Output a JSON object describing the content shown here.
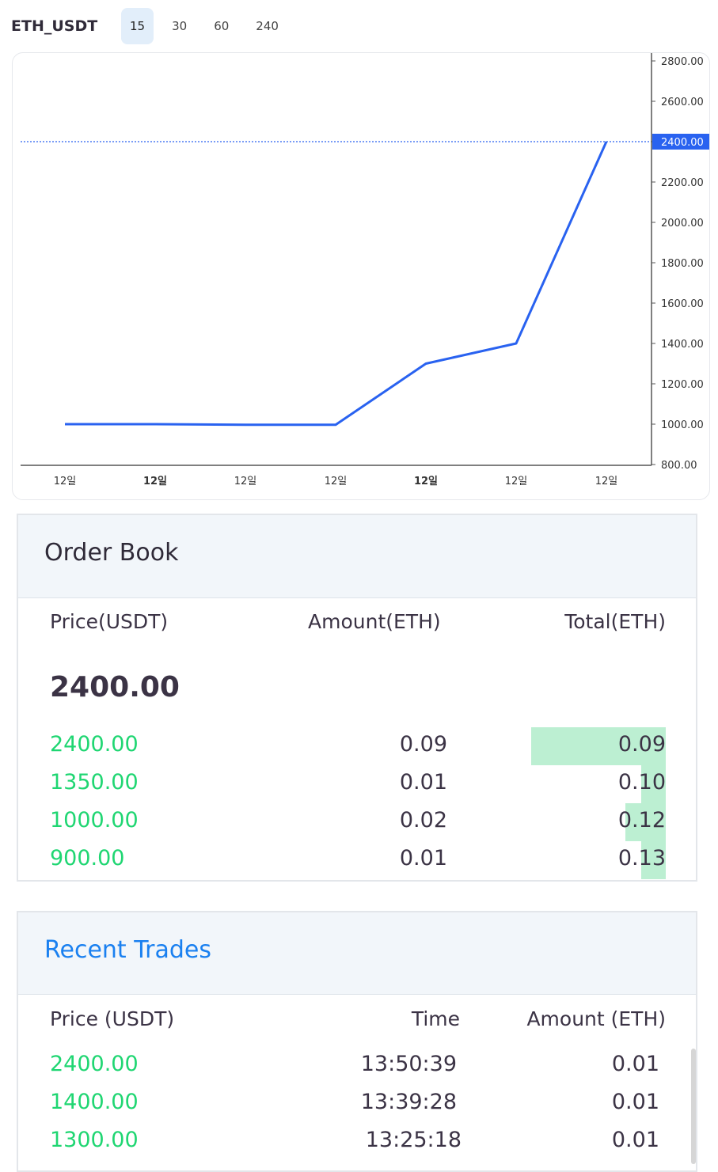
{
  "header": {
    "symbol": "ETH_USDT",
    "intervals": [
      {
        "label": "15",
        "active": true
      },
      {
        "label": "30",
        "active": false
      },
      {
        "label": "60",
        "active": false
      },
      {
        "label": "240",
        "active": false
      }
    ]
  },
  "chart_data": {
    "type": "line",
    "x": [
      "12일",
      "12일",
      "12일",
      "12일",
      "12일",
      "12일",
      "12일"
    ],
    "x_bold": [
      false,
      true,
      false,
      false,
      true,
      false,
      false
    ],
    "values": [
      1000,
      1000,
      997,
      997,
      1300,
      1400,
      2400
    ],
    "y_ticks": [
      "2800.00",
      "2600.00",
      "2400.00",
      "2200.00",
      "2000.00",
      "1800.00",
      "1600.00",
      "1400.00",
      "1200.00",
      "1000.00",
      "800.00"
    ],
    "ylim": [
      800,
      2800
    ],
    "last_price_label": "2400.00",
    "last_price": 2400,
    "line_color": "#2962f0",
    "grid": false
  },
  "order_book": {
    "title": "Order Book",
    "columns": [
      "Price(USDT)",
      "Amount(ETH)",
      "Total(ETH)"
    ],
    "current_price": "2400.00",
    "rows": [
      {
        "price": "2400.00",
        "amount": "0.09",
        "total": "0.09",
        "depth": 1.0
      },
      {
        "price": "1350.00",
        "amount": "0.01",
        "total": "0.10",
        "depth": 0.18
      },
      {
        "price": "1000.00",
        "amount": "0.02",
        "total": "0.12",
        "depth": 0.3
      },
      {
        "price": "900.00",
        "amount": "0.01",
        "total": "0.13",
        "depth": 0.18
      }
    ]
  },
  "recent_trades": {
    "title": "Recent Trades",
    "columns": [
      "Price (USDT)",
      "Time",
      "Amount (ETH)"
    ],
    "rows": [
      {
        "price": "2400.00",
        "time": "13:50:39",
        "amount": "0.01"
      },
      {
        "price": "1400.00",
        "time": "13:39:28",
        "amount": "0.01"
      },
      {
        "price": "1300.00",
        "time": "13:25:18",
        "amount": "0.01"
      }
    ]
  },
  "colors": {
    "buy_green": "#1fd672",
    "depth_bar": "#bcefd2",
    "accent_blue": "#1a80f0",
    "price_line": "#2962f0"
  }
}
